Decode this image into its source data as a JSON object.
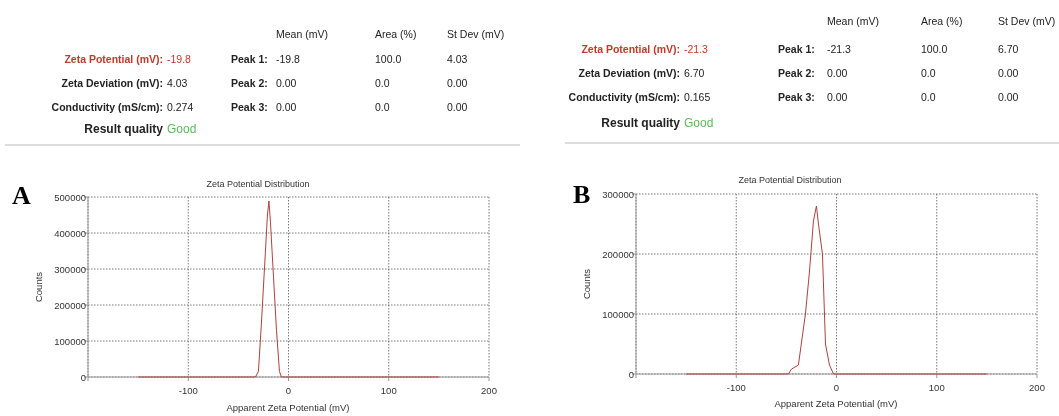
{
  "chart_data": [
    {
      "type": "other",
      "annotations": [
        "Zeta Potential (mV):",
        "-19.8",
        "Zeta Deviation (mV):",
        "4.03",
        "Conductivity (mS/cm):",
        "0.274",
        "Result quality",
        "Good",
        "Mean (mV)",
        "Area (%)",
        "St Dev (mV)",
        "Peak 1:",
        "-19.8",
        "100.0",
        "4.03",
        "Peak 2:",
        "0.00",
        "0.0",
        "0.00",
        "Peak 3:",
        "0.00",
        "0.0",
        "0.00"
      ]
    },
    {
      "type": "line",
      "title": "Zeta Potential Distribution",
      "xlabel": "Apparent Zeta Potential (mV)",
      "ylabel": "Counts",
      "annotations": [
        "A"
      ],
      "grid": true,
      "xlim": [
        -200,
        200
      ],
      "xticks": [
        {
          "value": -200,
          "label": null
        },
        -100,
        0,
        100,
        200
      ],
      "ylim": [
        0,
        500000
      ],
      "yticks": [
        0,
        100000,
        200000,
        300000,
        400000,
        500000
      ],
      "series": [
        {
          "color": "#b04040",
          "x": [
            -150,
            -33,
            -30,
            -27,
            -24,
            -21,
            -19.5,
            -18,
            -15,
            -12,
            -9,
            -7,
            150
          ],
          "values": [
            0,
            0,
            15000,
            150000,
            300000,
            450000,
            489000,
            430000,
            280000,
            130000,
            15000,
            0,
            0
          ]
        }
      ]
    },
    {
      "type": "other",
      "annotations": [
        "Zeta Potential (mV):",
        "-21.3",
        "Zeta Deviation (mV):",
        "6.70",
        "Conductivity (mS/cm):",
        "0.165",
        "Result quality",
        "Good",
        "Mean (mV)",
        "Area (%)",
        "St Dev (mV)",
        "Peak 1:",
        "-21.3",
        "100.0",
        "6.70",
        "Peak 2:",
        "0.00",
        "0.0",
        "0.00",
        "Peak 3:",
        "0.00",
        "0.0",
        "0.00"
      ]
    },
    {
      "type": "line",
      "title": "Zeta Potential Distribution",
      "xlabel": "Apparent Zeta Potential (mV)",
      "ylabel": "Counts",
      "annotations": [
        "B"
      ],
      "grid": true,
      "xlim": [
        -200,
        200
      ],
      "xticks": [
        {
          "value": -200,
          "label": null
        },
        -100,
        0,
        100,
        200
      ],
      "ylim": [
        0,
        300000
      ],
      "yticks": [
        0,
        100000,
        200000,
        300000
      ],
      "series": [
        {
          "color": "#b04040",
          "x": [
            -150,
            -48,
            -45,
            -38,
            -31,
            -27,
            -23,
            -20,
            -18,
            -14,
            -11,
            -7,
            -3,
            150
          ],
          "values": [
            0,
            0,
            8000,
            15000,
            100000,
            170000,
            255000,
            280000,
            250000,
            200000,
            50000,
            15000,
            0,
            0
          ]
        }
      ]
    }
  ]
}
